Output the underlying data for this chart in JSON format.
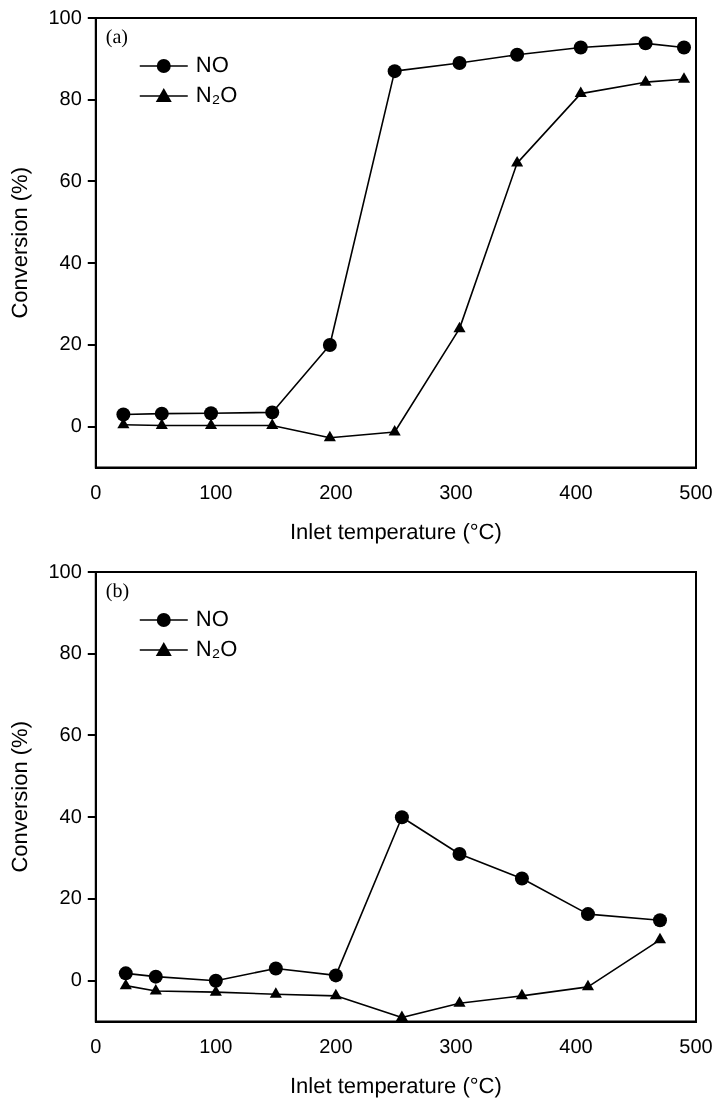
{
  "chart_data": [
    {
      "type": "line",
      "xlabel": "Inlet temperature (°C)",
      "ylabel": "Conversion (%)",
      "annotations": [
        "(a)"
      ],
      "xlim": [
        0,
        500
      ],
      "xticks": [
        0,
        100,
        200,
        300,
        400,
        500
      ],
      "ylim": [
        -10,
        100
      ],
      "yticks": [
        0,
        20,
        40,
        60,
        80,
        100
      ],
      "legend": "top left",
      "grid": false,
      "line_style": "solid",
      "series": [
        {
          "name": "NO",
          "color": "#000000",
          "marker": "circle",
          "x": [
            23,
            55,
            96,
            147,
            195,
            249,
            303,
            351,
            404,
            458,
            490
          ],
          "values": [
            3,
            3.2,
            3.3,
            3.5,
            20,
            87,
            89,
            91,
            92.8,
            93.8,
            92.8
          ]
        },
        {
          "name": "N₂O",
          "color": "#000000",
          "marker": "triangle",
          "x": [
            23,
            55,
            96,
            147,
            195,
            249,
            303,
            351,
            404,
            458,
            490
          ],
          "values": [
            0.5,
            0.3,
            0.3,
            0.3,
            -2.7,
            -1.3,
            24,
            64.5,
            81.5,
            84.3,
            85
          ]
        }
      ]
    },
    {
      "type": "line",
      "xlabel": "Inlet temperature (°C)",
      "ylabel": "Conversion (%)",
      "annotations": [
        "(b)"
      ],
      "xlim": [
        0,
        500
      ],
      "xticks": [
        0,
        100,
        200,
        300,
        400,
        500
      ],
      "ylim": [
        -10,
        100
      ],
      "yticks": [
        0,
        20,
        40,
        60,
        80,
        100
      ],
      "legend": "top left",
      "grid": false,
      "line_style": "solid",
      "series": [
        {
          "name": "NO",
          "color": "#000000",
          "marker": "circle",
          "x": [
            25,
            50,
            100,
            150,
            200,
            255,
            303,
            355,
            410,
            470
          ],
          "values": [
            1.8,
            1,
            0,
            3,
            1.3,
            40,
            31,
            25,
            16.3,
            14.8
          ]
        },
        {
          "name": "N₂O",
          "color": "#000000",
          "marker": "triangle",
          "x": [
            25,
            50,
            100,
            150,
            200,
            255,
            303,
            355,
            410,
            470
          ],
          "values": [
            -1.2,
            -2.5,
            -2.8,
            -3.3,
            -3.7,
            -9,
            -5.5,
            -3.7,
            -1.5,
            10
          ]
        }
      ]
    }
  ]
}
